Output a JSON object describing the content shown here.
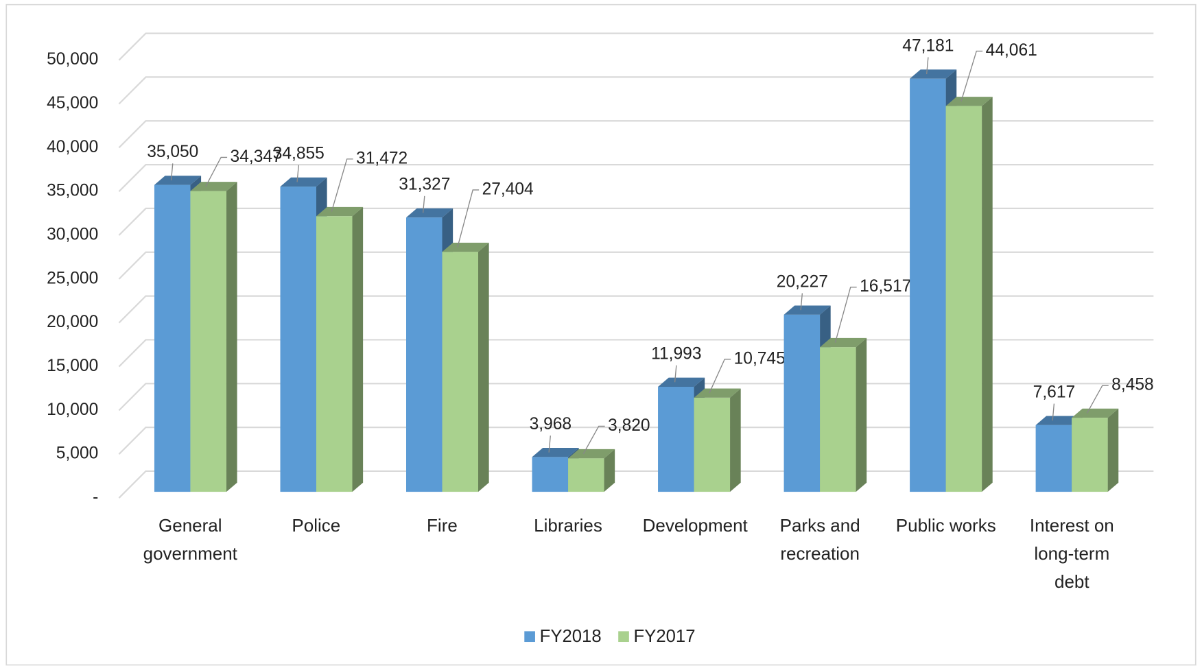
{
  "chart_data": {
    "type": "bar3d",
    "categories": [
      "General government",
      "Police",
      "Fire",
      "Libraries",
      "Development",
      "Parks and recreation",
      "Public works",
      "Interest on long-term debt"
    ],
    "series": [
      {
        "name": "FY2018",
        "color": "#5b9bd5",
        "values": [
          35050,
          34855,
          31327,
          3968,
          11993,
          20227,
          47181,
          7617
        ],
        "value_labels": [
          "35,050",
          "34,855",
          "31,327",
          "3,968",
          "11,993",
          "20,227",
          "47,181",
          "7,617"
        ]
      },
      {
        "name": "FY2017",
        "color": "#a9d18e",
        "values": [
          34347,
          31472,
          27404,
          3820,
          10745,
          16517,
          44061,
          8458
        ],
        "value_labels": [
          "34,347",
          "31,472",
          "27,404",
          "3,820",
          "10,745",
          "16,517",
          "44,061",
          "8,458"
        ]
      }
    ],
    "ylim": [
      0,
      50000
    ],
    "yticks": [
      {
        "value": 0,
        "label": "-"
      },
      {
        "value": 5000,
        "label": "5,000"
      },
      {
        "value": 10000,
        "label": "10,000"
      },
      {
        "value": 15000,
        "label": "15,000"
      },
      {
        "value": 20000,
        "label": "20,000"
      },
      {
        "value": 25000,
        "label": "25,000"
      },
      {
        "value": 30000,
        "label": "30,000"
      },
      {
        "value": 35000,
        "label": "35,000"
      },
      {
        "value": 40000,
        "label": "40,000"
      },
      {
        "value": 45000,
        "label": "45,000"
      },
      {
        "value": 50000,
        "label": "50,000"
      }
    ],
    "grid": true,
    "legend": "bottom"
  }
}
